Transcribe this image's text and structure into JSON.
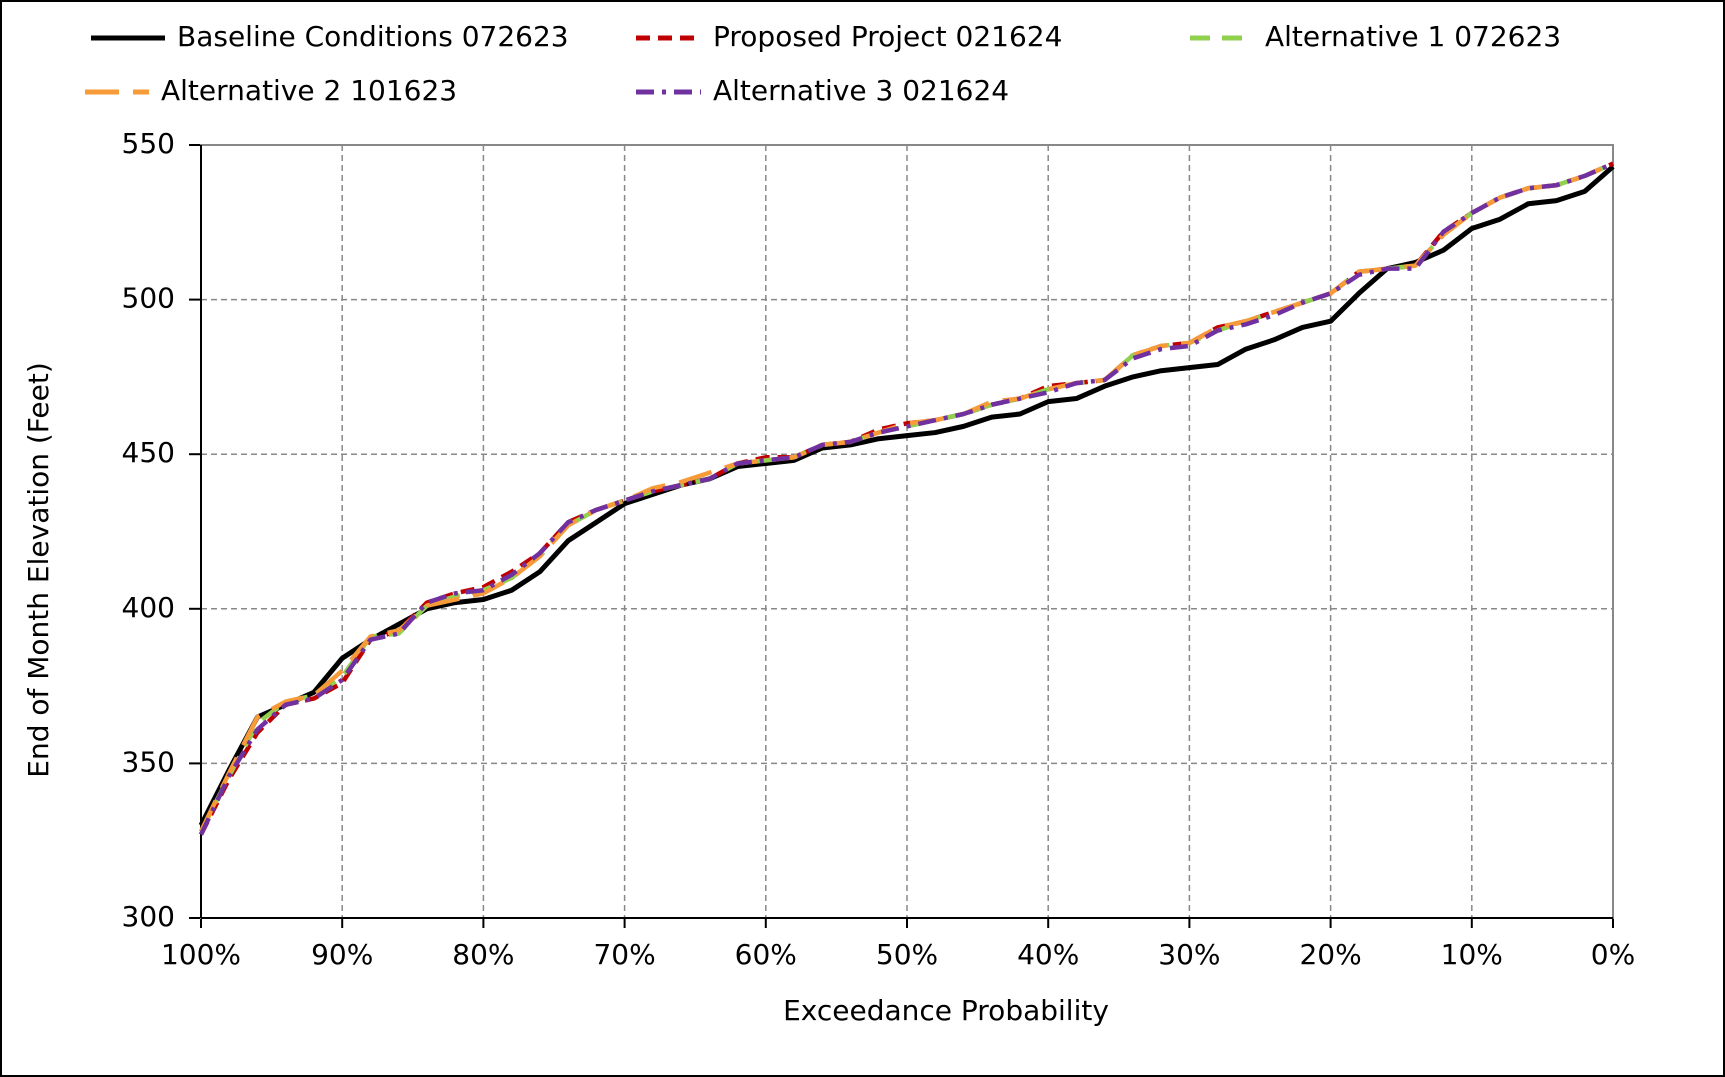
{
  "chart_data": {
    "type": "line",
    "x_label": "Exceedance Probability",
    "y_label": "End of Month Elevation (Feet)",
    "xlim": [
      100,
      0
    ],
    "xticks": [
      {
        "value": 100,
        "label": "100%"
      },
      {
        "value": 90,
        "label": "90%"
      },
      {
        "value": 80,
        "label": "80%"
      },
      {
        "value": 70,
        "label": "70%"
      },
      {
        "value": 60,
        "label": "60%"
      },
      {
        "value": 50,
        "label": "50%"
      },
      {
        "value": 40,
        "label": "40%"
      },
      {
        "value": 30,
        "label": "30%"
      },
      {
        "value": 20,
        "label": "20%"
      },
      {
        "value": 10,
        "label": "10%"
      },
      {
        "value": 0,
        "label": "0%"
      }
    ],
    "ylim": [
      300,
      550
    ],
    "yticks": [
      300,
      350,
      400,
      450,
      500,
      550
    ],
    "grid": true,
    "legend": "top",
    "x": [
      100,
      98,
      96,
      94,
      92,
      90,
      88,
      86,
      84,
      82,
      80,
      78,
      76,
      74,
      72,
      70,
      68,
      66,
      64,
      62,
      60,
      58,
      56,
      54,
      52,
      50,
      48,
      46,
      44,
      42,
      40,
      38,
      36,
      34,
      32,
      30,
      28,
      26,
      24,
      22,
      20,
      18,
      16,
      14,
      12,
      10,
      8,
      6,
      4,
      2,
      0
    ],
    "series": [
      {
        "name": "Baseline Conditions 072623",
        "color": "#000000",
        "dash": "solid",
        "values": [
          330,
          348,
          365,
          369,
          373,
          384,
          390,
          395,
          400,
          402,
          403,
          406,
          412,
          422,
          428,
          434,
          437,
          440,
          442,
          446,
          447,
          448,
          452,
          453,
          455,
          456,
          457,
          459,
          462,
          463,
          467,
          468,
          472,
          475,
          477,
          478,
          479,
          484,
          487,
          491,
          493,
          502,
          510,
          512,
          516,
          523,
          526,
          531,
          532,
          535,
          543
        ]
      },
      {
        "name": "Proposed Project 021624",
        "color": "#c00000",
        "dash": "dashed",
        "values": [
          327,
          345,
          360,
          369,
          371,
          376,
          390,
          393,
          402,
          405,
          407,
          412,
          418,
          428,
          432,
          435,
          438,
          440,
          442,
          447,
          449,
          449,
          453,
          454,
          458,
          460,
          461,
          463,
          466,
          468,
          472,
          473,
          474,
          482,
          485,
          486,
          491,
          493,
          496,
          499,
          502,
          509,
          510,
          511,
          522,
          528,
          533,
          536,
          537,
          540,
          544
        ]
      },
      {
        "name": "Alternative 1 072623",
        "color": "#92d050",
        "dash": "longdash",
        "values": [
          328,
          346,
          363,
          370,
          372,
          378,
          391,
          392,
          401,
          404,
          406,
          410,
          417,
          427,
          432,
          435,
          438,
          440,
          442,
          447,
          448,
          449,
          453,
          454,
          457,
          459,
          461,
          463,
          466,
          468,
          471,
          473,
          474,
          482,
          485,
          486,
          490,
          493,
          496,
          499,
          502,
          509,
          510,
          511,
          521,
          528,
          533,
          536,
          537,
          540,
          544
        ]
      },
      {
        "name": "Alternative 2 101623",
        "color": "#f79a38",
        "dash": "bigdash",
        "values": [
          328,
          347,
          365,
          370,
          372,
          380,
          391,
          393,
          401,
          403,
          405,
          410,
          417,
          427,
          432,
          435,
          439,
          441,
          444,
          447,
          448,
          449,
          453,
          454,
          457,
          460,
          461,
          463,
          467,
          468,
          471,
          473,
          474,
          482,
          485,
          486,
          491,
          493,
          496,
          499,
          502,
          509,
          510,
          511,
          521,
          528,
          533,
          536,
          537,
          540,
          544
        ]
      },
      {
        "name": "Alternative 3 021624",
        "color": "#7030a0",
        "dash": "dashdot",
        "values": [
          327,
          346,
          361,
          369,
          371,
          377,
          390,
          392,
          402,
          405,
          406,
          411,
          418,
          428,
          432,
          435,
          438,
          440,
          442,
          447,
          448,
          449,
          453,
          454,
          457,
          459,
          461,
          463,
          466,
          468,
          470,
          473,
          474,
          481,
          484,
          485,
          490,
          492,
          495,
          499,
          502,
          508,
          510,
          510,
          522,
          528,
          533,
          536,
          537,
          540,
          544
        ]
      }
    ]
  }
}
